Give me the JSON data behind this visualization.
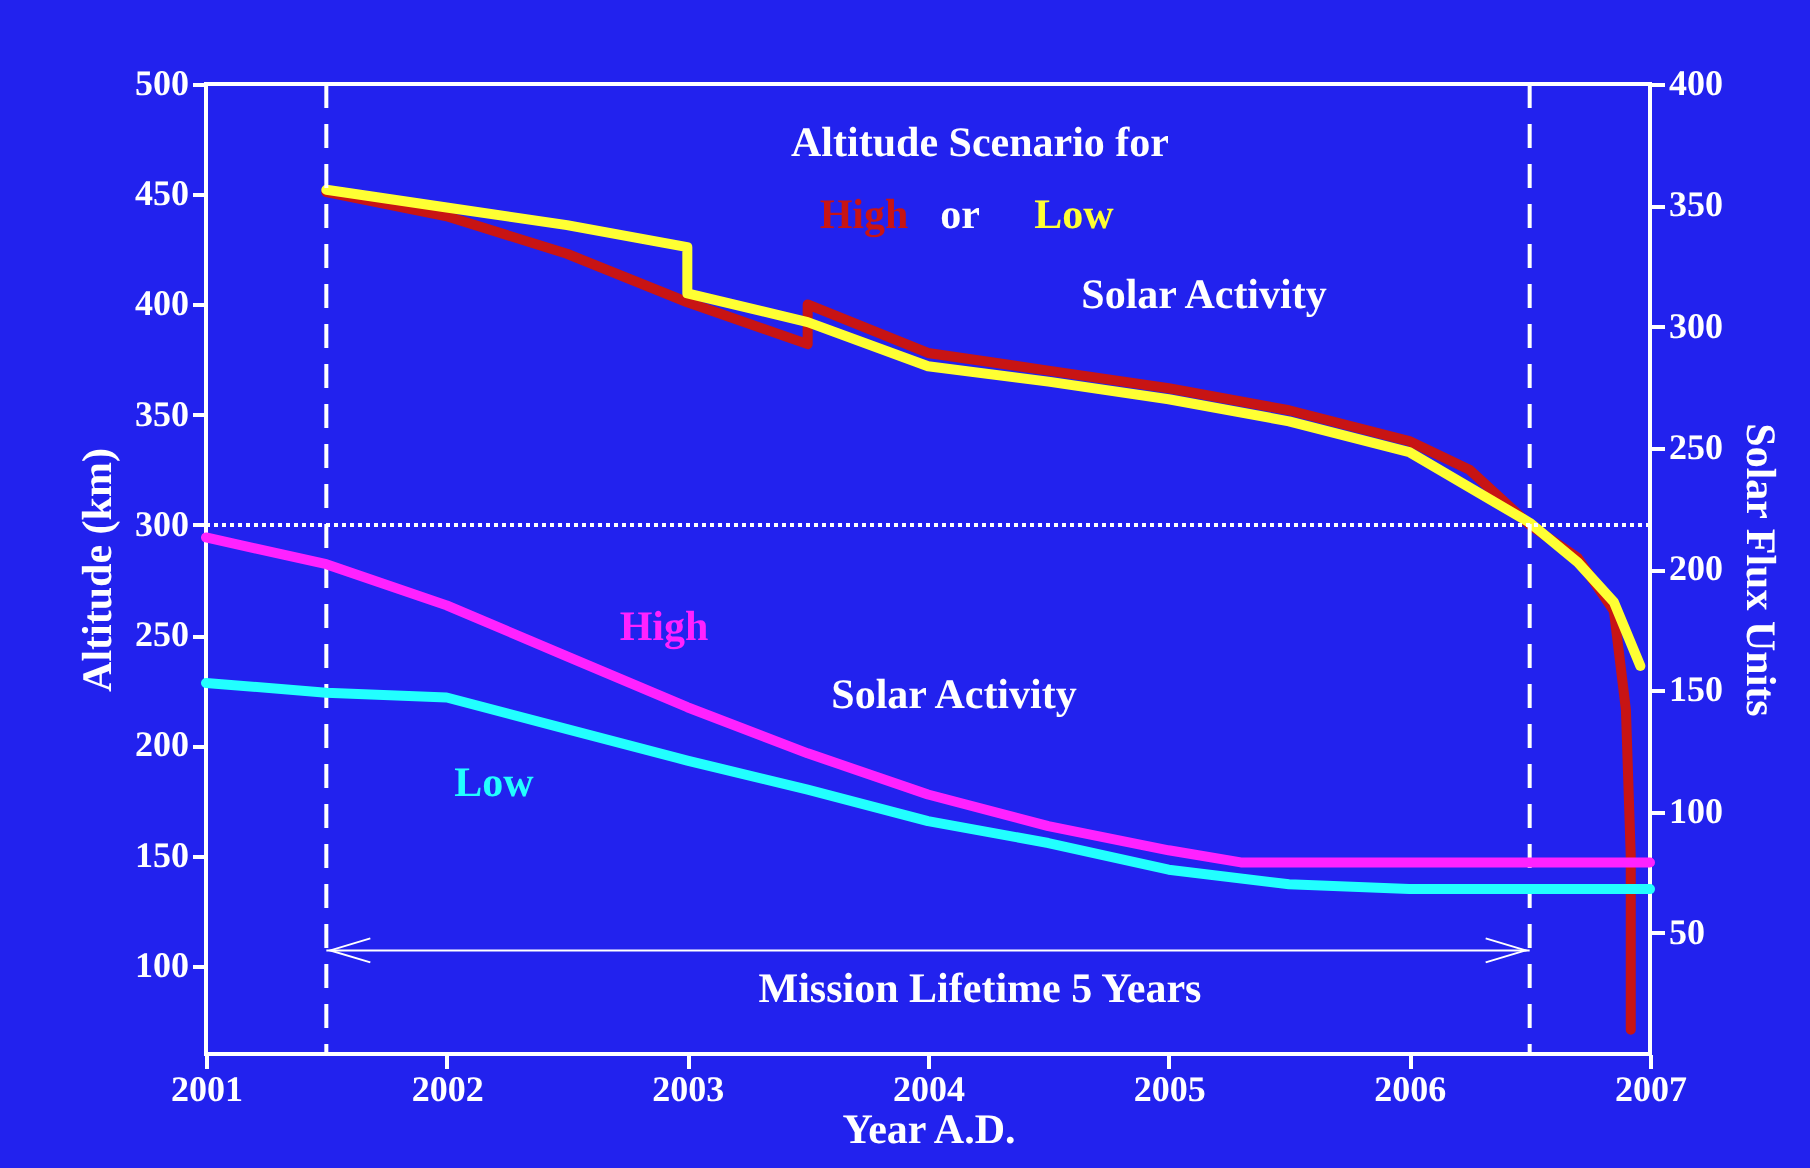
{
  "chart_data": {
    "type": "line",
    "title": "Altitude Scenario for",
    "xlabel": "Year A.D.",
    "ylabel": "Altitude (km)",
    "y2label": "Solar Flux Units",
    "xlim": [
      2001,
      2007
    ],
    "xticks": [
      2001,
      2002,
      2003,
      2004,
      2005,
      2006,
      2007
    ],
    "ylim": [
      60,
      500
    ],
    "yticks": [
      100,
      150,
      200,
      250,
      300,
      350,
      400,
      450,
      500
    ],
    "y2lim": [
      0,
      400
    ],
    "y2ticks": [
      50,
      100,
      150,
      200,
      250,
      300,
      350,
      400
    ],
    "series": [
      {
        "name": "High",
        "color": "#c81414",
        "x": [
          2001.5,
          2002,
          2002.5,
          2003,
          2003.5,
          2003.5,
          2004,
          2004.5,
          2005,
          2005.5,
          2006,
          2006.25,
          2006.5,
          2006.7,
          2006.85,
          2006.9,
          2006.92,
          2006.92
        ],
        "values": [
          451,
          440,
          423,
          401,
          382,
          400,
          378,
          370,
          362,
          352,
          338,
          325,
          300,
          285,
          261,
          216,
          150,
          71
        ]
      },
      {
        "name": "Low",
        "color": "#ffff33",
        "x": [
          2001.5,
          2002,
          2002.5,
          2003,
          2003,
          2003.5,
          2004,
          2004.5,
          2005,
          2005.5,
          2006,
          2006.5,
          2006.7,
          2006.85,
          2006.96
        ],
        "values": [
          452,
          444,
          436,
          426,
          405,
          392,
          372,
          365,
          357,
          347,
          333,
          301,
          283,
          265,
          236
        ]
      },
      {
        "name": "High",
        "color": "#ff22ff",
        "axis": "y2",
        "x": [
          2001,
          2001.5,
          2002,
          2002.5,
          2003,
          2003.5,
          2004,
          2004.5,
          2005,
          2005.3,
          2006,
          2007
        ],
        "values": [
          213,
          202,
          185,
          164,
          143,
          124,
          107,
          94,
          84,
          79,
          79,
          79
        ]
      },
      {
        "name": "Low",
        "color": "#22ffff",
        "axis": "y2",
        "x": [
          2001,
          2001.5,
          2002,
          2002.5,
          2003,
          2003.5,
          2004,
          2004.5,
          2005,
          2005.5,
          2006,
          2007
        ],
        "values": [
          153,
          149,
          147,
          134,
          121,
          109,
          96,
          87,
          76,
          70,
          68,
          68
        ]
      }
    ],
    "ref_lines": [
      {
        "axis": "y",
        "value": 300,
        "color": "#ffffff",
        "line_style": "dotted"
      },
      {
        "axis": "y",
        "value": 107,
        "color": "#ffffff",
        "line_style": "solid",
        "label": "Mission Lifetime 5 Years"
      },
      {
        "axis": "x",
        "value": 2001.5,
        "color": "#ffffff",
        "line_style": "dashed"
      },
      {
        "axis": "x",
        "value": 2006.5,
        "color": "#ffffff",
        "line_style": "dashed"
      }
    ],
    "annotations": [
      "or",
      "Solar Activity",
      "Solar Activity"
    ]
  }
}
